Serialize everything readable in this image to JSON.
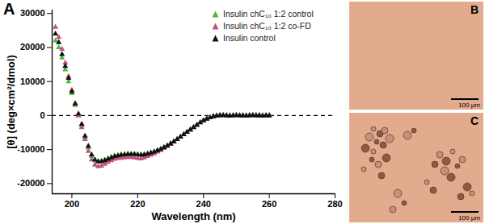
{
  "chart_data": {
    "type": "scatter",
    "panel_label": "A",
    "x_label": "Wavelength (nm)",
    "y_label": "[θ] (deg×cm²/dmol)",
    "xlim": [
      194,
      280
    ],
    "xticks": [
      200,
      220,
      240,
      260,
      280
    ],
    "ylim": [
      -23000,
      31000
    ],
    "yticks": [
      -20000,
      -10000,
      0,
      10000,
      20000,
      30000
    ],
    "legend": "top-right",
    "reference_line": {
      "y": 0,
      "line_style": "dashed"
    },
    "x": [
      195,
      196,
      197,
      198,
      199,
      200,
      201,
      202,
      203,
      204,
      205,
      206,
      207,
      208,
      209,
      210,
      211,
      212,
      213,
      214,
      215,
      216,
      217,
      218,
      219,
      220,
      221,
      222,
      223,
      224,
      225,
      226,
      227,
      228,
      229,
      230,
      231,
      232,
      233,
      234,
      235,
      236,
      237,
      238,
      239,
      240,
      241,
      242,
      243,
      244,
      245,
      246,
      247,
      248,
      249,
      250,
      251,
      252,
      253,
      254,
      255,
      256,
      257,
      258,
      259,
      260
    ],
    "series": [
      {
        "name": "Insulin chC₁₀ 1:2 control",
        "color": "#4cbb3a",
        "marker": "triangle",
        "values": [
          22000,
          20000,
          17000,
          13500,
          10000,
          6500,
          3000,
          0,
          -3000,
          -6500,
          -9500,
          -12000,
          -13200,
          -13600,
          -13400,
          -13000,
          -12600,
          -12200,
          -11900,
          -11700,
          -11500,
          -11400,
          -11300,
          -11300,
          -11300,
          -11400,
          -11500,
          -11400,
          -11200,
          -10900,
          -10600,
          -10200,
          -9800,
          -9300,
          -8800,
          -8200,
          -7600,
          -6900,
          -6200,
          -5500,
          -4800,
          -4100,
          -3400,
          -2700,
          -2000,
          -1400,
          -900,
          -500,
          -200,
          0,
          100,
          0,
          100,
          0,
          -100,
          0,
          0,
          100,
          0,
          0,
          -100,
          0,
          100,
          0,
          0,
          0
        ]
      },
      {
        "name": "Insulin chC₁₀ 1:2 co-FD",
        "color": "#c4507c",
        "marker": "triangle",
        "values": [
          26000,
          23000,
          19500,
          15500,
          11500,
          7500,
          3500,
          0,
          -3500,
          -7000,
          -10500,
          -13000,
          -14500,
          -15000,
          -14800,
          -14300,
          -13700,
          -13200,
          -12800,
          -12600,
          -12500,
          -12400,
          -12300,
          -12300,
          -12400,
          -12600,
          -12700,
          -12400,
          -12000,
          -11600,
          -11200,
          -10700,
          -10200,
          -9600,
          -9000,
          -8400,
          -7700,
          -7000,
          -6300,
          -5600,
          -4900,
          -4200,
          -3500,
          -2800,
          -2100,
          -1500,
          -1000,
          -600,
          -300,
          -100,
          0,
          0,
          -100,
          0,
          0,
          100,
          0,
          -100,
          0,
          0,
          100,
          0,
          0,
          -100,
          0,
          0
        ]
      },
      {
        "name": "Insulin control",
        "color": "#111111",
        "marker": "triangle",
        "values": [
          24000,
          21500,
          18000,
          14500,
          11000,
          7000,
          3500,
          500,
          -2500,
          -6000,
          -9000,
          -11500,
          -13000,
          -13500,
          -13500,
          -13200,
          -12800,
          -12400,
          -12000,
          -11800,
          -11600,
          -11500,
          -11400,
          -11400,
          -11400,
          -11500,
          -11600,
          -11500,
          -11300,
          -11000,
          -10700,
          -10300,
          -9900,
          -9400,
          -8900,
          -8300,
          -7700,
          -7000,
          -6300,
          -5600,
          -4900,
          -4200,
          -3500,
          -2800,
          -2100,
          -1500,
          -1000,
          -600,
          -300,
          -100,
          0,
          100,
          0,
          -100,
          0,
          100,
          0,
          0,
          -100,
          0,
          100,
          0,
          0,
          -100,
          0,
          0
        ]
      }
    ]
  },
  "images": [
    {
      "label": "B",
      "scale_bar": "100 µm"
    },
    {
      "label": "C",
      "scale_bar": "100 µm"
    }
  ]
}
